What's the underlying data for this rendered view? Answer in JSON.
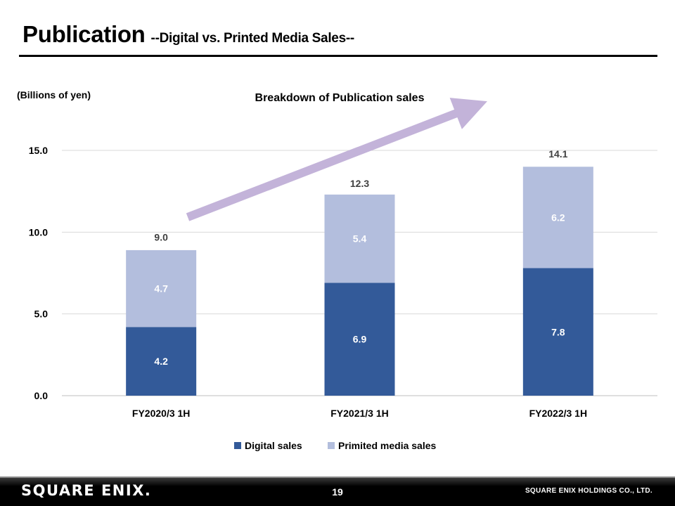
{
  "slide": {
    "title": "Publication",
    "subtitle": "--Digital vs. Printed Media Sales--"
  },
  "chart_data": {
    "type": "bar",
    "stacked": true,
    "title": "Breakdown of Publication  sales",
    "unit_label": "(Billions of yen)",
    "categories": [
      "FY2020/3 1H",
      "FY2021/3 1H",
      "FY2022/3 1H"
    ],
    "series": [
      {
        "name": "Digital sales",
        "values": [
          4.2,
          6.9,
          7.8
        ],
        "color": "#335a99"
      },
      {
        "name": "Primited media sales",
        "values": [
          4.7,
          5.4,
          6.2
        ],
        "color": "#b3bedd"
      }
    ],
    "totals": [
      9.0,
      12.3,
      14.1
    ],
    "total_labels": [
      "9.0",
      "12.3",
      "14.1"
    ],
    "value_labels": [
      [
        "4.2",
        "6.9",
        "7.8"
      ],
      [
        "4.7",
        "5.4",
        "6.2"
      ]
    ],
    "ylim": [
      0,
      15
    ],
    "yticks": [
      0,
      5,
      10,
      15
    ],
    "ytick_labels": [
      "0.0",
      "5.0",
      "10.0",
      "15.0"
    ],
    "grid": true,
    "legend": "bottom",
    "trend_arrow_color": "#c3b3d9"
  },
  "footer": {
    "logo": "SQUARE ENIX.",
    "page_number": "19",
    "company": "SQUARE ENIX HOLDINGS CO., LTD."
  }
}
